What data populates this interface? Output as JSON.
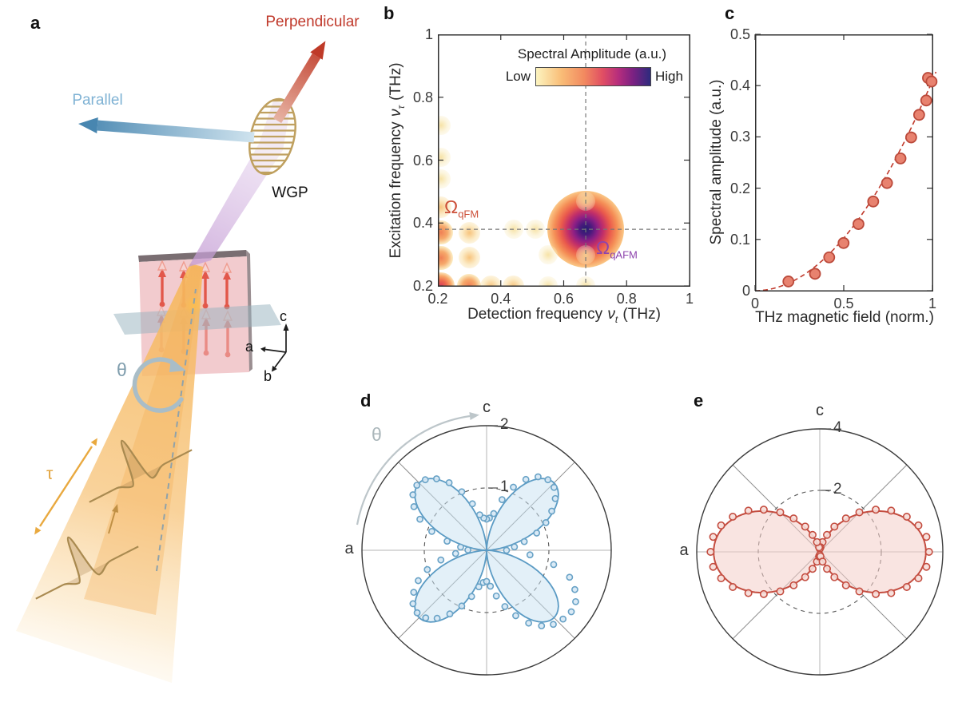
{
  "figure": {
    "panel_labels": {
      "a": "a",
      "b": "b",
      "c": "c",
      "d": "d",
      "e": "e"
    },
    "colors": {
      "perpendicular_red": "#c0392b",
      "parallel_blue": "#7fb2d4",
      "spin_red": "#e2574a",
      "beam_orange": "#f2b25c",
      "wgp_gold": "#bfa05f",
      "blue_series": "#5b9bc4",
      "red_series": "#c0392b"
    }
  },
  "panel_a": {
    "perpendicular": "Perpendicular",
    "parallel": "Parallel",
    "wgp": "WGP",
    "theta": "θ",
    "tau": "τ",
    "axis_c": "c",
    "axis_a": "a",
    "axis_b": "b"
  },
  "chart_data": [
    {
      "id": "b",
      "type": "heatmap",
      "xlabel": {
        "prefix": "Detection frequency",
        "symbol": "ν",
        "subscript": "t",
        "unit": "(THz)"
      },
      "ylabel": {
        "prefix": "Excitation frequency",
        "symbol": "ν",
        "subscript": "τ",
        "unit": "(THz)"
      },
      "xlim": [
        0.2,
        1
      ],
      "ylim": [
        0.2,
        1
      ],
      "xticks": [
        "0.2",
        "0.4",
        "0.6",
        "0.8",
        "1"
      ],
      "yticks": [
        "1",
        "0.8",
        "0.6",
        "0.4",
        "0.2"
      ],
      "colorbar": {
        "title": "Spectral Amplitude (a.u.)",
        "low": "Low",
        "high": "High",
        "gradient": [
          [
            "#fcf4c0",
            0
          ],
          [
            "#f9bd77",
            22
          ],
          [
            "#f28a60",
            42
          ],
          [
            "#e14f63",
            58
          ],
          [
            "#b62d7d",
            72
          ],
          [
            "#7a2182",
            85
          ],
          [
            "#2e2b7e",
            100
          ]
        ]
      },
      "crosshair": {
        "x": 0.67,
        "y": 0.38
      },
      "annotations": [
        {
          "symbol": "Ω",
          "subscript": "qFM",
          "x": 0.24,
          "y": 0.44,
          "color": "#cc4f38"
        },
        {
          "symbol": "Ω",
          "subscript": "qAFM",
          "x": 0.75,
          "y": 0.26,
          "color": "#8e44ad"
        }
      ],
      "peaks": [
        [
          0.67,
          0.38,
          "high"
        ],
        [
          0.21,
          0.2,
          "red"
        ],
        [
          0.3,
          0.2,
          "orange"
        ],
        [
          0.37,
          0.2,
          "light"
        ],
        [
          0.44,
          0.2,
          "light"
        ],
        [
          0.55,
          0.2,
          "faint"
        ],
        [
          0.67,
          0.2,
          "faint"
        ],
        [
          0.21,
          0.29,
          "orange"
        ],
        [
          0.3,
          0.29,
          "light"
        ],
        [
          0.55,
          0.3,
          "faint"
        ],
        [
          0.21,
          0.37,
          "orange"
        ],
        [
          0.3,
          0.37,
          "light"
        ],
        [
          0.44,
          0.38,
          "faint"
        ],
        [
          0.51,
          0.38,
          "faint"
        ],
        [
          0.21,
          0.45,
          "light"
        ],
        [
          0.21,
          0.54,
          "faint"
        ],
        [
          0.21,
          0.61,
          "faint"
        ],
        [
          0.21,
          0.71,
          "faint"
        ],
        [
          0.67,
          0.3,
          "faint"
        ],
        [
          0.67,
          0.47,
          "faint"
        ]
      ]
    },
    {
      "id": "c",
      "type": "scatter",
      "xlabel": "THz magnetic field (norm.)",
      "ylabel": "Spectral amplitude (a.u.)",
      "xlim": [
        0,
        1
      ],
      "ylim": [
        0,
        0.5
      ],
      "xticks": [
        "0",
        "0.5",
        "1"
      ],
      "yticks": [
        "0.5",
        "0.4",
        "0.3",
        "0.2",
        "0.1",
        "0"
      ],
      "points_x": [
        0.188,
        0.338,
        0.418,
        0.499,
        0.583,
        0.666,
        0.744,
        0.82,
        0.88,
        0.925,
        0.965,
        0.975,
        0.995
      ],
      "points_y": [
        0.018,
        0.033,
        0.065,
        0.093,
        0.13,
        0.174,
        0.21,
        0.258,
        0.299,
        0.343,
        0.371,
        0.415,
        0.408
      ],
      "fit": {
        "type": "power",
        "coefficient": 0.41,
        "exponent": 2,
        "x_range": [
          0,
          1.03
        ]
      },
      "marker_color": "#e8826f",
      "marker_edge": "#bb4a3b",
      "fit_color": "#c0392b"
    },
    {
      "id": "d",
      "type": "polar",
      "rmax": 2,
      "radial_ticks": [
        {
          "value": 1,
          "label": "1"
        },
        {
          "value": 2,
          "label": "2"
        }
      ],
      "axis_labels": {
        "top": "c",
        "left": "a"
      },
      "theta_label": "θ",
      "curve": {
        "harmonic": 2,
        "amplitude": 1.53,
        "exponent": 1.5,
        "formula": "r ∝ |sin(2θ)|^1.5"
      },
      "line_color": "#5b9bc4",
      "fill_color": "rgba(199,225,241,0.5)",
      "marker_fill": "rgba(214,232,245,0.9)",
      "marker_edge": "#68a2c6",
      "points": [
        [
          0,
          0.32
        ],
        [
          7,
          0.45
        ],
        [
          13,
          0.62
        ],
        [
          19,
          0.85
        ],
        [
          25,
          1.05
        ],
        [
          31,
          1.22
        ],
        [
          37,
          1.38
        ],
        [
          43,
          1.48
        ],
        [
          49,
          1.5
        ],
        [
          55,
          1.44
        ],
        [
          61,
          1.3
        ],
        [
          67,
          1.1
        ],
        [
          73,
          0.85
        ],
        [
          79,
          0.6
        ],
        [
          85,
          0.52
        ],
        [
          90,
          0.5
        ],
        [
          95,
          0.52
        ],
        [
          101,
          0.58
        ],
        [
          107,
          0.78
        ],
        [
          113,
          1.02
        ],
        [
          119,
          1.24
        ],
        [
          125,
          1.4
        ],
        [
          131,
          1.5
        ],
        [
          137,
          1.53
        ],
        [
          143,
          1.48
        ],
        [
          149,
          1.36
        ],
        [
          155,
          1.18
        ],
        [
          161,
          0.93
        ],
        [
          167,
          0.65
        ],
        [
          173,
          0.42
        ],
        [
          179,
          0.3
        ],
        [
          186,
          0.5
        ],
        [
          192,
          0.75
        ],
        [
          198,
          1.0
        ],
        [
          204,
          1.2
        ],
        [
          210,
          1.35
        ],
        [
          216,
          1.46
        ],
        [
          222,
          1.5
        ],
        [
          228,
          1.46
        ],
        [
          234,
          1.35
        ],
        [
          240,
          1.18
        ],
        [
          246,
          0.98
        ],
        [
          252,
          0.78
        ],
        [
          258,
          0.6
        ],
        [
          264,
          0.52
        ],
        [
          270,
          0.5
        ],
        [
          276,
          0.58
        ],
        [
          282,
          0.75
        ],
        [
          288,
          0.95
        ],
        [
          294,
          1.15
        ],
        [
          300,
          1.35
        ],
        [
          306,
          1.5
        ],
        [
          312,
          1.6
        ],
        [
          318,
          1.65
        ],
        [
          324,
          1.68
        ],
        [
          330,
          1.65
        ],
        [
          336,
          1.55
        ],
        [
          342,
          1.4
        ],
        [
          348,
          1.1
        ],
        [
          354,
          0.7
        ]
      ]
    },
    {
      "id": "e",
      "type": "polar",
      "rmax": 4,
      "radial_ticks": [
        {
          "value": 2,
          "label": "2"
        },
        {
          "value": 4,
          "label": "4"
        }
      ],
      "axis_labels": {
        "top": "c",
        "left": "a"
      },
      "curve": {
        "harmonic": 1,
        "amplitude": 3.45,
        "exponent": 2,
        "formula": "r ∝ cos²θ"
      },
      "line_color": "#c44d40",
      "fill_color": "rgba(244,205,200,0.55)",
      "marker_fill": "rgba(246,221,216,0.9)",
      "marker_edge": "#c44d40",
      "points": [
        [
          0,
          3.55
        ],
        [
          8,
          3.5
        ],
        [
          15,
          3.32
        ],
        [
          22,
          3.05
        ],
        [
          30,
          2.68
        ],
        [
          37,
          2.28
        ],
        [
          45,
          1.82
        ],
        [
          52,
          1.38
        ],
        [
          60,
          0.95
        ],
        [
          67,
          0.6
        ],
        [
          74,
          0.33
        ],
        [
          81,
          0.15
        ],
        [
          90,
          0.1
        ],
        [
          99,
          0.15
        ],
        [
          106,
          0.33
        ],
        [
          113,
          0.6
        ],
        [
          120,
          0.95
        ],
        [
          128,
          1.38
        ],
        [
          135,
          1.82
        ],
        [
          143,
          2.28
        ],
        [
          150,
          2.68
        ],
        [
          158,
          3.05
        ],
        [
          165,
          3.32
        ],
        [
          172,
          3.5
        ],
        [
          180,
          3.55
        ],
        [
          188,
          3.5
        ],
        [
          195,
          3.32
        ],
        [
          202,
          3.05
        ],
        [
          210,
          2.68
        ],
        [
          217,
          2.28
        ],
        [
          225,
          1.82
        ],
        [
          232,
          1.38
        ],
        [
          240,
          0.95
        ],
        [
          247,
          0.6
        ],
        [
          254,
          0.33
        ],
        [
          261,
          0.15
        ],
        [
          270,
          0.1
        ],
        [
          279,
          0.15
        ],
        [
          286,
          0.33
        ],
        [
          293,
          0.6
        ],
        [
          300,
          0.95
        ],
        [
          308,
          1.38
        ],
        [
          315,
          1.82
        ],
        [
          323,
          2.28
        ],
        [
          330,
          2.68
        ],
        [
          338,
          3.05
        ],
        [
          345,
          3.32
        ],
        [
          352,
          3.5
        ]
      ]
    }
  ]
}
